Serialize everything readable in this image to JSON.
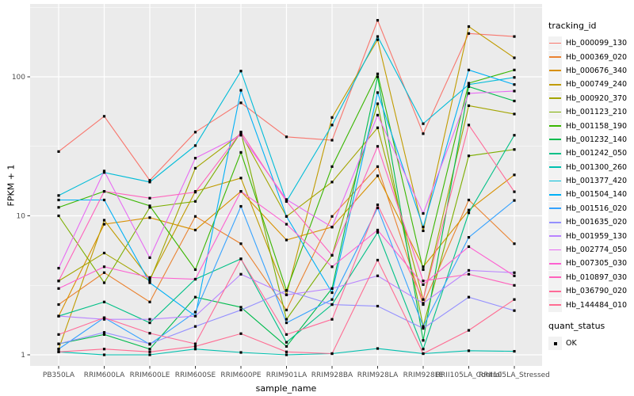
{
  "figure": {
    "background": "#FFFFFF",
    "panel_background": "#EBEBEB",
    "gridline_color": "#FFFFFF",
    "axis_text_color": "#4D4D4D",
    "tick_mark_color": "#333333",
    "point_color": "#000000"
  },
  "axes": {
    "y": {
      "title": "FPKM + 1",
      "scale": "log10",
      "ticks": [
        {
          "label": "1",
          "value": 1
        },
        {
          "label": "10",
          "value": 10
        },
        {
          "label": "100",
          "value": 100
        }
      ],
      "minor_ticks": [
        3.162,
        31.62,
        316.2
      ]
    },
    "x": {
      "title": "sample_name"
    }
  },
  "legend": {
    "tracking_title": "tracking_id",
    "quant_title": "quant_status",
    "quant_label": "OK"
  },
  "chart_data": {
    "type": "line",
    "title": "",
    "xlabel": "sample_name",
    "ylabel": "FPKM + 1",
    "yscale": "log10",
    "ylim": [
      0.83,
      330
    ],
    "grid": true,
    "legend_position": "right",
    "point_marker": "black-square",
    "x_categories": [
      "PB350LA",
      "RRIM600LA",
      "RRIM600LE",
      "RRIM600SE",
      "RRIM600PE",
      "RRIM901LA",
      "RRIM928BA",
      "RRIM928LA",
      "RRIM928LE",
      "RRII105LA_Control",
      "RRII105LA_Stressed"
    ],
    "series": [
      {
        "name": "Hb_000099_130",
        "color": "#F8766D",
        "values": [
          29,
          52,
          18,
          40,
          65,
          37,
          35,
          255,
          39,
          205,
          195
        ]
      },
      {
        "name": "Hb_000369_020",
        "color": "#EA8331",
        "values": [
          2.3,
          3.9,
          2.4,
          9.9,
          6.3,
          2.1,
          9.9,
          22.6,
          2.3,
          13,
          6.3
        ]
      },
      {
        "name": "Hb_000676_340",
        "color": "#D89000",
        "values": [
          1.9,
          8.7,
          9.7,
          7.9,
          15,
          6.7,
          8.3,
          19.4,
          4.3,
          11,
          19.7
        ]
      },
      {
        "name": "Hb_000749_240",
        "color": "#C09B00",
        "values": [
          1.1,
          9.3,
          3.5,
          15,
          18.7,
          2.7,
          51,
          185,
          7.8,
          230,
          137
        ]
      },
      {
        "name": "Hb_000920_370",
        "color": "#A3A500",
        "values": [
          3.4,
          5.4,
          3.4,
          22,
          39,
          9.9,
          17.5,
          43,
          2.5,
          62,
          54
        ]
      },
      {
        "name": "Hb_001123_210",
        "color": "#7CAE00",
        "values": [
          10,
          3.3,
          11.5,
          12.7,
          40,
          1.8,
          5.2,
          64,
          1.6,
          27,
          30
        ]
      },
      {
        "name": "Hb_001158_190",
        "color": "#39B600",
        "values": [
          11.5,
          15,
          11.8,
          4.1,
          28.6,
          2.9,
          22.6,
          105,
          4.1,
          90,
          112
        ]
      },
      {
        "name": "Hb_001232_140",
        "color": "#00BB4E",
        "values": [
          1.2,
          1.4,
          1.1,
          2.6,
          2.2,
          1.15,
          3.0,
          100,
          1.27,
          85,
          67
        ]
      },
      {
        "name": "Hb_001242_050",
        "color": "#00C087",
        "values": [
          1.9,
          2.4,
          1.7,
          3.5,
          4.9,
          1.23,
          2.3,
          7.6,
          1.1,
          10.5,
          38
        ]
      },
      {
        "name": "Hb_001300_260",
        "color": "#00C0AF",
        "values": [
          1.05,
          1.0,
          1.0,
          1.1,
          1.04,
          1.0,
          1.02,
          1.11,
          1.02,
          1.07,
          1.06
        ]
      },
      {
        "name": "Hb_001377_420",
        "color": "#00BCD8",
        "values": [
          14,
          20.5,
          17.5,
          32,
          110,
          12.7,
          45,
          195,
          46,
          88,
          99
        ]
      },
      {
        "name": "Hb_001504_140",
        "color": "#00B0F6",
        "values": [
          13,
          13,
          3.3,
          1.9,
          80,
          9.9,
          2.8,
          77,
          8.3,
          112,
          88
        ]
      },
      {
        "name": "Hb_001516_020",
        "color": "#35A2FF",
        "values": [
          1.1,
          1.85,
          1.19,
          2.03,
          11.7,
          1.7,
          2.5,
          11.4,
          1.6,
          7.0,
          12.9
        ]
      },
      {
        "name": "Hb_001635_020",
        "color": "#9590FF",
        "values": [
          1.2,
          1.45,
          1.2,
          1.6,
          2.1,
          2.9,
          2.3,
          2.24,
          1.55,
          2.6,
          2.08
        ]
      },
      {
        "name": "Hb_001959_130",
        "color": "#B983FF",
        "values": [
          1.9,
          1.8,
          1.8,
          1.9,
          3.8,
          2.7,
          3.0,
          3.7,
          2.35,
          4.05,
          3.9
        ]
      },
      {
        "name": "Hb_002774_050",
        "color": "#E76BF3",
        "values": [
          4.2,
          21,
          5.0,
          26,
          38,
          13.1,
          8.3,
          53,
          10.4,
          76,
          79
        ]
      },
      {
        "name": "Hb_007305_030",
        "color": "#FD61D1",
        "values": [
          3.0,
          4.3,
          3.6,
          3.5,
          15,
          8.7,
          4.3,
          7.9,
          3.2,
          6.0,
          3.7
        ]
      },
      {
        "name": "Hb_010897_030",
        "color": "#FF62BC",
        "values": [
          3.4,
          15,
          13.4,
          14.8,
          40,
          12.7,
          5.2,
          31.6,
          3.4,
          3.8,
          3.16
        ]
      },
      {
        "name": "Hb_036790_020",
        "color": "#FF6A98",
        "values": [
          1.4,
          1.85,
          1.43,
          1.2,
          4.9,
          1.4,
          1.8,
          12,
          2.5,
          45,
          14.9
        ]
      },
      {
        "name": "Hb_144484_010",
        "color": "#FF6C92",
        "values": [
          1.05,
          1.1,
          1.05,
          1.15,
          1.42,
          1.05,
          1.02,
          4.8,
          1.02,
          1.5,
          2.5
        ]
      }
    ]
  }
}
